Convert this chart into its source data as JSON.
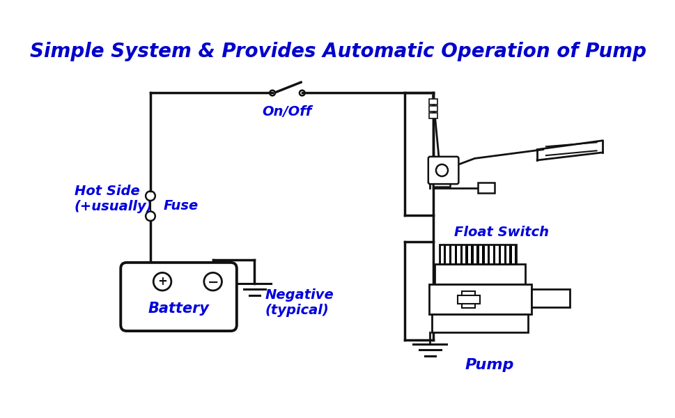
{
  "title": "Simple System & Provides Automatic Operation of Pump",
  "title_color": "#0000CC",
  "title_fontsize": 20,
  "label_color": "#0000DD",
  "label_fontsize": 14,
  "wire_color": "#111111",
  "component_color": "#111111",
  "bg_color": "#ffffff",
  "labels": {
    "on_off": "On/Off",
    "fuse": "Fuse",
    "hot_side": "Hot Side\n(+usually)",
    "battery": "Battery",
    "negative": "Negative\n(typical)",
    "float_switch": "Float Switch",
    "pump": "Pump"
  }
}
